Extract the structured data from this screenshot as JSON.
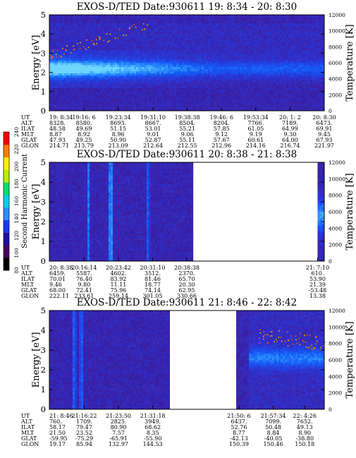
{
  "chart_data": [
    {
      "type": "heatmap",
      "title": "EXOS-D/TED   Date:930611  19: 8:34 - 20: 8:30",
      "ylabel": "Energy [eV]",
      "ylabel_right": "Temperature [K]",
      "ylim": [
        0,
        5
      ],
      "ylim_right": [
        0,
        12000
      ],
      "yticks": [
        "0",
        "1",
        "2",
        "3",
        "4",
        "5"
      ],
      "yticks_right": [
        "0",
        "2000",
        "4000",
        "6000",
        "8000",
        "10000",
        "12000"
      ],
      "time_start": "19:08:34",
      "time_end": "20:08:30",
      "data_coverage": [
        [
          "19:08:34",
          "20:08:30"
        ]
      ],
      "features": {
        "band_center_eV": 2.2,
        "band_halfwidth_eV": 0.45,
        "band_fade_time": "19:45:00"
      },
      "aux_table": {
        "row_labels": [
          "UT",
          "ALT",
          "ILAT",
          "MLT",
          "GLAT",
          "GLON"
        ],
        "columns": [
          {
            "time": "19:08:34",
            "values": [
              "19: 8:34",
              "8328.",
              "48.58",
              "8.87",
              "47.93",
              "214.71"
            ]
          },
          {
            "time": "19:16:06",
            "values": [
              "19:16: 6",
              "8580.",
              "49.69",
              "8.92",
              "49.25",
              "213.79"
            ]
          },
          {
            "time": "19:23:34",
            "values": [
              "19:23:34",
              "8693.",
              "51.15",
              "8.96",
              "50.90",
              "213.09"
            ]
          },
          {
            "time": "19:31:10",
            "values": [
              "19:31:10",
              "8667.",
              "53.01",
              "9.01",
              "52.87",
              "212.64"
            ]
          },
          {
            "time": "19:38:38",
            "values": [
              "19:38:38",
              "8504.",
              "55.21",
              "9.06",
              "55.11",
              "212.55"
            ]
          },
          {
            "time": "19:46:06",
            "values": [
              "19:46: 6",
              "8204.",
              "57.85",
              "9.12",
              "57.67",
              "212.96"
            ]
          },
          {
            "time": "19:53:34",
            "values": [
              "19:53:34",
              "7766.",
              "61.05",
              "9.19",
              "60.61",
              "214.16"
            ]
          },
          {
            "time": "20:01:02",
            "values": [
              "20: 1: 2",
              "7189.",
              "64.99",
              "9.30",
              "64.00",
              "216.74"
            ]
          },
          {
            "time": "20:08:30",
            "values": [
              "20: 8:30",
              "6473.",
              "69.91",
              "9.45",
              "67.93",
              "221.97"
            ]
          }
        ]
      }
    },
    {
      "type": "heatmap",
      "title": "EXOS-D/TED   Date:930611  20: 8:38 - 21: 8:38",
      "ylabel": "Energy [eV]",
      "ylabel_right": "Temperature [K]",
      "ylim": [
        0,
        5
      ],
      "ylim_right": [
        0,
        12000
      ],
      "yticks": [
        "0",
        "1",
        "2",
        "3",
        "4",
        "5"
      ],
      "yticks_right": [
        "0",
        "2000",
        "4000",
        "6000",
        "8000",
        "10000",
        "12000"
      ],
      "time_start": "20:08:38",
      "time_end": "21:08:38",
      "data_coverage": [
        [
          "20:08:38",
          "20:40:00"
        ],
        [
          "21:07:10",
          "21:08:38"
        ]
      ],
      "features": {
        "spikes": [
          "20:17:00",
          "20:21:30",
          "20:22:00",
          "20:30:00"
        ],
        "right_blob_center_eV": 2.3
      },
      "aux_table": {
        "row_labels": [
          "UT",
          "ALT",
          "ILAT",
          "MLT",
          "GLAT",
          "GLON"
        ],
        "columns": [
          {
            "time": "20:08:38",
            "values": [
              "20: 8:38",
              "6459.",
              "70.01",
              "9.46",
              "68.00",
              "222.11"
            ]
          },
          {
            "time": "20:16:14",
            "values": [
              "20:16:14",
              "5587.",
              "76.40",
              "9.80",
              "72.41",
              "233.61"
            ]
          },
          {
            "time": "20:23:42",
            "values": [
              "20:23:42",
              "4602.",
              "83.92",
              "11.11",
              "75.96",
              "259.14"
            ]
          },
          {
            "time": "20:31:10",
            "values": [
              "20:31:10",
              "3512.",
              "81.46",
              "18.77",
              "74.14",
              "301.05"
            ]
          },
          {
            "time": "20:38:38",
            "values": [
              "20:38:38",
              "2370.",
              "65.70",
              "20.30",
              "62.95",
              "330.66"
            ]
          },
          {
            "time": "21:07:10",
            "values": [
              "21: 7:10",
              "610.",
              "53.90",
              "21.39",
              "-53.48",
              "13.38"
            ]
          }
        ]
      }
    },
    {
      "type": "heatmap",
      "title": "EXOS-D/TED   Date:930611  21: 8:46 - 22: 8:42",
      "ylabel": "Energy [eV]",
      "ylabel_right": "Temperature [K]",
      "ylim": [
        0,
        5
      ],
      "ylim_right": [
        0,
        12000
      ],
      "yticks": [
        "0",
        "1",
        "2",
        "3",
        "4",
        "5"
      ],
      "yticks_right": [
        "0",
        "2000",
        "4000",
        "6000",
        "8000",
        "10000",
        "12000"
      ],
      "time_start": "21:08:46",
      "time_end": "22:08:42",
      "data_coverage": [
        [
          "21:08:46",
          "21:35:00"
        ],
        [
          "21:49:30",
          "22:08:42"
        ]
      ],
      "features": {
        "spikes": [
          "21:14:00",
          "21:15:30"
        ],
        "band_center_eV": 2.6,
        "band_start_time": "21:52:00"
      },
      "aux_table": {
        "row_labels": [
          "UT",
          "ALT",
          "ILAT",
          "MLT",
          "GLAT",
          "GLON"
        ],
        "columns": [
          {
            "time": "21:08:46",
            "values": [
              "21: 8:46",
              "760.",
              "58.17",
              "21.50",
              "-59.95",
              "19.17"
            ]
          },
          {
            "time": "21:16:22",
            "values": [
              "21:16:22",
              "1709.",
              "79.47",
              "23.52",
              "-75.29",
              "85.94"
            ]
          },
          {
            "time": "21:23:50",
            "values": [
              "21:23:50",
              "2825.",
              "80.90",
              "7.57",
              "-65.91",
              "132.97"
            ]
          },
          {
            "time": "21:31:18",
            "values": [
              "21:31:18",
              "3949.",
              "68.62",
              "8.35",
              "-55.90",
              "144.53"
            ]
          },
          {
            "time": "21:50:06",
            "values": [
              "21:50: 6",
              "6437.",
              "52.76",
              "8.77",
              "-42.13",
              "150.39"
            ]
          },
          {
            "time": "21:57:34",
            "values": [
              "21:57:34",
              "7099.",
              "50.48",
              "8.84",
              "-40.05",
              "150.46"
            ]
          },
          {
            "time": "22:04:26",
            "values": [
              "22: 4:26",
              "7652.",
              "49.13",
              "8.90",
              "-38.80",
              "150.18"
            ]
          }
        ]
      }
    }
  ],
  "colorbar": {
    "label": "Second Harmonic Current",
    "ticks": [
      "80",
      "100",
      "120",
      "140",
      "160",
      "180",
      "200",
      "220",
      "240"
    ],
    "colors": [
      "#000000",
      "#4a0060",
      "#1f0fa0",
      "#1a38ff",
      "#2f8dff",
      "#00d0f0",
      "#00e070",
      "#b8ef00",
      "#fff000",
      "#ff8000",
      "#ff0000"
    ]
  }
}
